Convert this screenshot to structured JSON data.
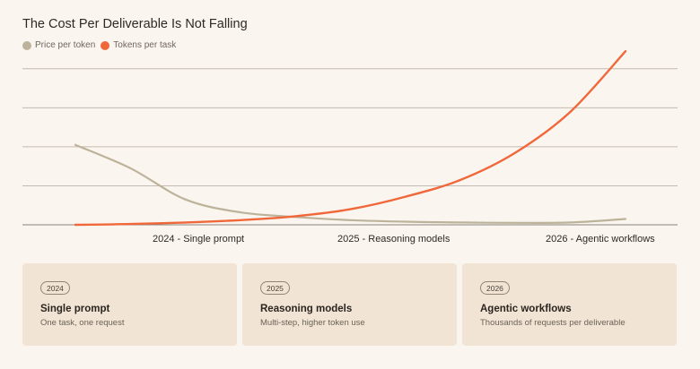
{
  "title": "The Cost Per Deliverable Is Not Falling",
  "legend": [
    {
      "label": "Price per token",
      "color": "#bcb39a"
    },
    {
      "label": "Tokens per task",
      "color": "#f0673a"
    }
  ],
  "stages": [
    {
      "label": "2024 - Single prompt"
    },
    {
      "label": "2025 - Reasoning models"
    },
    {
      "label": "2026 - Agentic workflows"
    }
  ],
  "cards": [
    {
      "year": "2024",
      "title": "Single prompt",
      "subtitle": "One task, one request"
    },
    {
      "year": "2025",
      "title": "Reasoning models",
      "subtitle": "Multi-step, higher token use"
    },
    {
      "year": "2026",
      "title": "Agentic workflows",
      "subtitle": "Thousands of requests per deliverable"
    }
  ],
  "chart_data": {
    "type": "line",
    "title": "The Cost Per Deliverable Is Not Falling",
    "x": [
      0,
      0.1,
      0.2,
      0.3,
      0.4,
      0.5,
      0.6,
      0.7,
      0.8,
      0.9,
      1.0
    ],
    "x_tick_labels": [
      "2024 - Single prompt",
      "2025 - Reasoning models",
      "2026 - Agentic workflows"
    ],
    "ylim": [
      0,
      4.5
    ],
    "grid": true,
    "legend_position": "top-left",
    "series": [
      {
        "name": "Price per token",
        "color": "#bcb39a",
        "values": [
          2.05,
          1.45,
          0.65,
          0.32,
          0.2,
          0.12,
          0.08,
          0.06,
          0.05,
          0.06,
          0.15
        ]
      },
      {
        "name": "Tokens per task",
        "color": "#f0673a",
        "values": [
          0.0,
          0.02,
          0.06,
          0.12,
          0.22,
          0.4,
          0.72,
          1.15,
          1.85,
          2.9,
          4.45
        ]
      }
    ]
  }
}
